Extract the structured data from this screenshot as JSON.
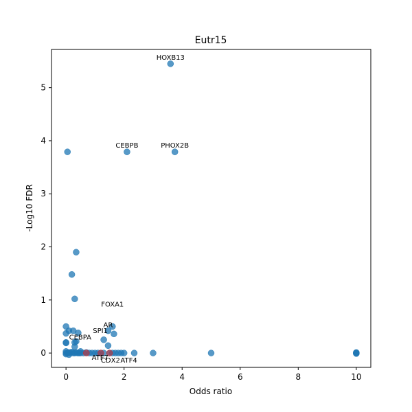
{
  "chart_data": {
    "type": "scatter",
    "title": "Eutr15",
    "xlabel": "Odds ratio",
    "ylabel": "-Log10 FDR",
    "xlim": [
      -0.5,
      10.5
    ],
    "ylim": [
      -0.27,
      5.72
    ],
    "xticks": [
      0,
      2,
      4,
      6,
      8,
      10
    ],
    "yticks": [
      0,
      1,
      2,
      3,
      4,
      5
    ],
    "grid": false,
    "point_color": "#1f77b4",
    "highlight_color": "#d62728",
    "series": [
      {
        "x": [
          0.05,
          0.35,
          0.2,
          0.3,
          0.0,
          0.0,
          0.1,
          0.25,
          0.42,
          0.0,
          0.0,
          0.0,
          0.0,
          0.0,
          0.05,
          0.1,
          0.15,
          0.2,
          0.25,
          0.3,
          0.35,
          0.4,
          0.45,
          0.5,
          0.6,
          0.7,
          0.8,
          0.9,
          1.0,
          1.1,
          1.2,
          1.3,
          1.5,
          1.6,
          1.7,
          1.8,
          1.9,
          2.0,
          1.65,
          1.45,
          2.35,
          3.0,
          5.0,
          10.0,
          10.0,
          10.0,
          10.0,
          0.3,
          0.35,
          0.1,
          0.5
        ],
        "y": [
          3.79,
          1.9,
          1.48,
          1.02,
          0.5,
          0.37,
          0.42,
          0.42,
          0.38,
          0.2,
          0.19,
          0.03,
          0.0,
          -0.02,
          0.0,
          0.01,
          0.0,
          0.02,
          0.0,
          0.0,
          0.01,
          0.0,
          0.0,
          0.0,
          0.0,
          0.01,
          0.0,
          0.0,
          0.0,
          0.0,
          0.0,
          0.0,
          0.0,
          0.0,
          0.0,
          0.0,
          0.0,
          0.0,
          0.36,
          0.14,
          0.0,
          0.0,
          0.0,
          0.0,
          0.01,
          -0.01,
          0.0,
          0.12,
          0.22,
          -0.03,
          0.03
        ]
      }
    ],
    "labeled_points": [
      {
        "label": "HOXB13",
        "x": 3.6,
        "y": 5.45
      },
      {
        "label": "CEBPB",
        "x": 2.1,
        "y": 3.79
      },
      {
        "label": "PHOX2B",
        "x": 3.75,
        "y": 3.79
      },
      {
        "label": "FOXA1",
        "x": 1.6,
        "y": 0.5
      },
      {
        "label": "AR",
        "x": 1.45,
        "y": 0.42
      },
      {
        "label": "SPI1",
        "x": 1.3,
        "y": 0.25
      },
      {
        "label": "CEBPA",
        "x": 0.3,
        "y": 0.2
      },
      {
        "label": "ATF7",
        "x": 0.7,
        "y": 0.0,
        "highlight": true
      },
      {
        "label": "CDX2",
        "x": 1.2,
        "y": 0.0,
        "highlight": true
      },
      {
        "label": "ATF4",
        "x": 1.5,
        "y": 0.0,
        "highlight": true
      }
    ]
  }
}
